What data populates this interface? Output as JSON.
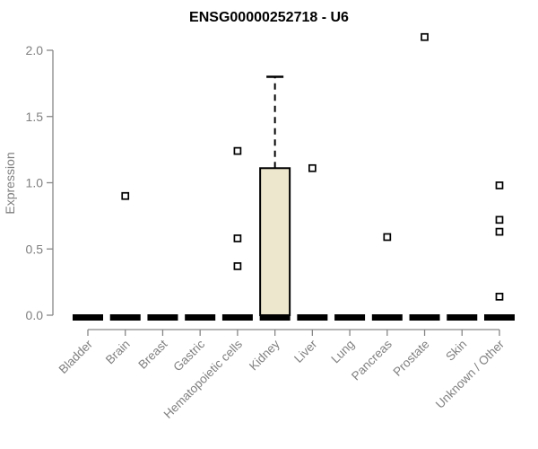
{
  "chart_data": {
    "type": "boxplot",
    "title": "ENSG00000252718 - U6",
    "ylabel": "Expression",
    "xlabel": "",
    "ylim": [
      0,
      2.0
    ],
    "yticks": [
      0,
      0.5,
      1,
      1.5,
      2
    ],
    "grid": false,
    "legend": null,
    "categories": [
      "Bladder",
      "Brain",
      "Breast",
      "Gastric",
      "Hematopoietic cells",
      "Kidney",
      "Liver",
      "Lung",
      "Pancreas",
      "Prostate",
      "Skin",
      "Unknown / Other"
    ],
    "boxes": [
      {
        "category": "Bladder",
        "q1": 0,
        "median": 0,
        "q3": 0,
        "whisker_low": 0,
        "whisker_high": 0,
        "outliers": []
      },
      {
        "category": "Brain",
        "q1": 0,
        "median": 0,
        "q3": 0,
        "whisker_low": 0,
        "whisker_high": 0,
        "outliers": [
          0.9
        ]
      },
      {
        "category": "Breast",
        "q1": 0,
        "median": 0,
        "q3": 0,
        "whisker_low": 0,
        "whisker_high": 0,
        "outliers": []
      },
      {
        "category": "Gastric",
        "q1": 0,
        "median": 0,
        "q3": 0,
        "whisker_low": 0,
        "whisker_high": 0,
        "outliers": []
      },
      {
        "category": "Hematopoietic cells",
        "q1": 0,
        "median": 0,
        "q3": 0,
        "whisker_low": 0,
        "whisker_high": 0,
        "outliers": [
          1.24,
          0.58,
          0.37
        ]
      },
      {
        "category": "Kidney",
        "q1": 0,
        "median": 0,
        "q3": 1.11,
        "whisker_low": 0,
        "whisker_high": 1.8,
        "outliers": []
      },
      {
        "category": "Liver",
        "q1": 0,
        "median": 0,
        "q3": 0,
        "whisker_low": 0,
        "whisker_high": 0,
        "outliers": [
          1.11
        ]
      },
      {
        "category": "Lung",
        "q1": 0,
        "median": 0,
        "q3": 0,
        "whisker_low": 0,
        "whisker_high": 0,
        "outliers": []
      },
      {
        "category": "Pancreas",
        "q1": 0,
        "median": 0,
        "q3": 0,
        "whisker_low": 0,
        "whisker_high": 0,
        "outliers": [
          0.59
        ]
      },
      {
        "category": "Prostate",
        "q1": 0,
        "median": 0,
        "q3": 0,
        "whisker_low": 0,
        "whisker_high": 0,
        "outliers": [
          2.1
        ]
      },
      {
        "category": "Skin",
        "q1": 0,
        "median": 0,
        "q3": 0,
        "whisker_low": 0,
        "whisker_high": 0,
        "outliers": []
      },
      {
        "category": "Unknown / Other",
        "q1": 0,
        "median": 0,
        "q3": 0,
        "whisker_low": 0,
        "whisker_high": 0,
        "outliers": [
          0.98,
          0.72,
          0.63,
          0.14
        ]
      }
    ],
    "colors": {
      "box_fill": "#EDE7CD",
      "box_border": "#000000",
      "median": "#000000",
      "whisker": "#000000",
      "outlier_fill": "#ffffff",
      "outlier_border": "#000000",
      "axis": "#878787",
      "tick_label": "#808080",
      "title": "#000000",
      "background": "#ffffff"
    }
  }
}
